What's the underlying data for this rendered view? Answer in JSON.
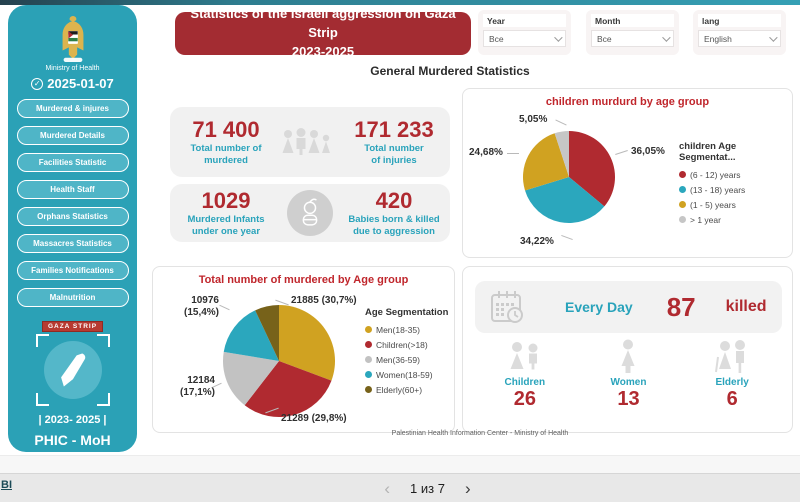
{
  "theme": {
    "sidebar_teal": "#2ba1b6",
    "button_teal": "#4fb5c7",
    "banner_red": "#a32c32",
    "value_red": "#b02a30",
    "label_teal": "#29a3bb"
  },
  "sidebar": {
    "org": "Ministry of Health",
    "check_icon": "✓",
    "date": "2025-01-07",
    "items": [
      "Murdered & injures",
      "Murdered Details",
      "Facilities Statistic",
      "Health Staff",
      "Orphans Statistics",
      "Massacres Statistics",
      "Families Notifications",
      "Malnutrition"
    ],
    "badge": "GAZA STRIP",
    "period": "|  2023- 2025  |",
    "footer": "PHIC - MoH"
  },
  "header": {
    "title_line1": "Statistics of the Israeli aggression on Gaza Strip",
    "title_line2": "2023-2025",
    "filters": [
      {
        "label": "Year",
        "value": "Все"
      },
      {
        "label": "Month",
        "value": "Все"
      },
      {
        "label": "lang",
        "value": "English"
      }
    ]
  },
  "section_title": "General Murdered Statistics",
  "stats": {
    "murdered": {
      "value": "71 400",
      "label1": "Total number of",
      "label2": "murdered"
    },
    "injuries": {
      "value": "171 233",
      "label1": "Total number",
      "label2": "of injuries"
    },
    "infants": {
      "value": "1029",
      "label1": "Murdered Infants",
      "label2": "under one year"
    },
    "babies": {
      "value": "420",
      "label1": "Babies born & killed",
      "label2": "due to aggression"
    }
  },
  "chart_data": [
    {
      "type": "pie",
      "title": "children murdurd by age group",
      "legend_title": "children Age Segmentat...",
      "legend_position": "right",
      "labels": [
        "(6 - 12) years",
        "(13 - 18) years",
        "(1 - 5) years",
        "> 1 year"
      ],
      "values": [
        36.05,
        34.22,
        24.68,
        5.05
      ],
      "colors": [
        "#b02a30",
        "#2ba7bd",
        "#d0a221",
        "#c6c6c6"
      ],
      "callouts": [
        {
          "text": "36,05%"
        },
        {
          "text": "34,22%"
        },
        {
          "text": "24,68%"
        },
        {
          "text": "5,05%"
        }
      ]
    },
    {
      "type": "pie",
      "title": "Total number of murdered by Age group",
      "legend_title": "Age Segmentation",
      "legend_position": "right",
      "labels": [
        "Men(18-35)",
        "Children(>18)",
        "Men(36-59)",
        "Women(18-59)",
        "Elderly(60+)"
      ],
      "values": [
        30.7,
        29.8,
        17.1,
        15.4,
        7.0
      ],
      "counts": [
        21885,
        21289,
        12184,
        10976,
        null
      ],
      "colors": [
        "#d0a221",
        "#b02a30",
        "#c2c2c2",
        "#2ba7bd",
        "#77621a"
      ],
      "callouts": [
        {
          "line1": "21885 (30,7%)"
        },
        {
          "line1": "21289 (29,8%)"
        },
        {
          "line1": "12184",
          "line2": "(17,1%)"
        },
        {
          "line1": "10976",
          "line2": "(15,4%)"
        }
      ]
    }
  ],
  "everyday": {
    "prefix": "Every Day",
    "value": "87",
    "suffix": "killed",
    "groups": [
      {
        "label": "Children",
        "value": "26"
      },
      {
        "label": "Women",
        "value": "13"
      },
      {
        "label": "Elderly",
        "value": "6"
      }
    ]
  },
  "report_footer": "Palestinian Health Information Center - Ministry of Health",
  "pagination": {
    "prev": "‹",
    "label": "1 из 7",
    "next": "›"
  },
  "bottom_left_link": "BI"
}
